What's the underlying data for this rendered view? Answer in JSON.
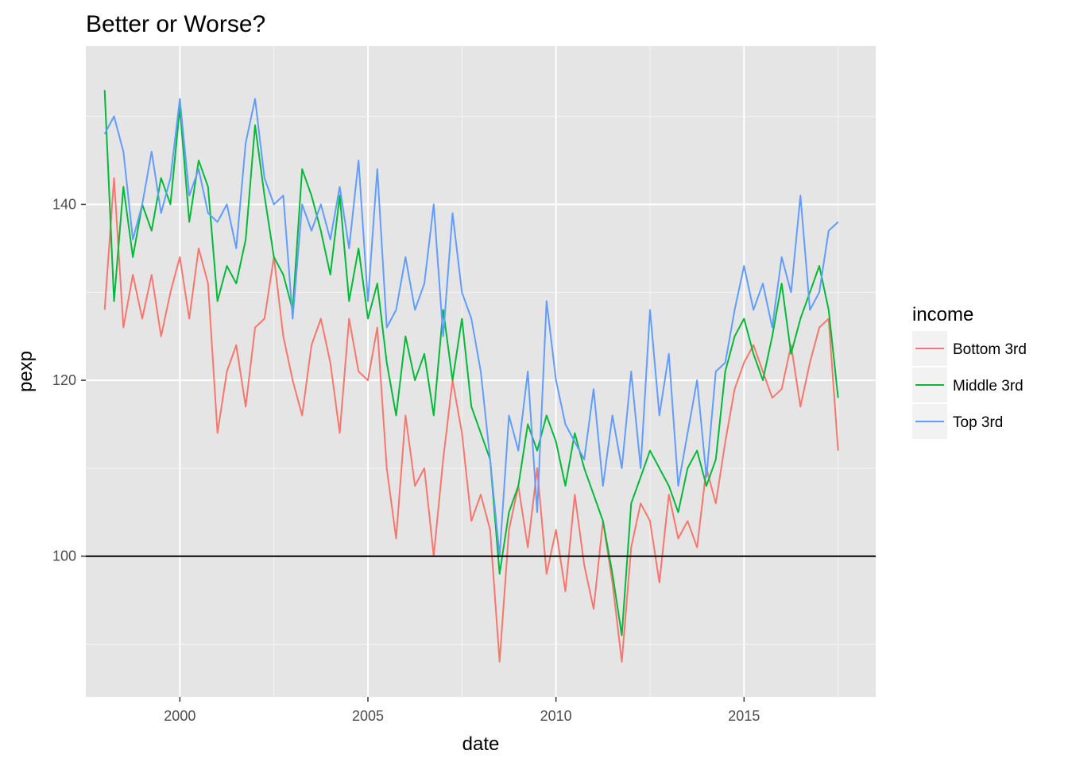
{
  "chart_data": {
    "type": "line",
    "title": "Better or Worse?",
    "xlabel": "date",
    "ylabel": "pexp",
    "xlim": [
      1997.5,
      2018.5
    ],
    "ylim": [
      84,
      158
    ],
    "x_ticks": [
      2000,
      2005,
      2010,
      2015
    ],
    "y_ticks": [
      100,
      120,
      140
    ],
    "reference_line": {
      "y": 100,
      "color": "#000000"
    },
    "panel_background": "#e5e5e5",
    "grid": true,
    "legend": {
      "title": "income",
      "position": "right",
      "entries": [
        "Bottom 3rd",
        "Middle 3rd",
        "Top 3rd"
      ]
    },
    "series": [
      {
        "name": "Bottom 3rd",
        "color": "#f8766d",
        "x": [
          1998.0,
          1998.25,
          1998.5,
          1998.75,
          1999.0,
          1999.25,
          1999.5,
          1999.75,
          2000.0,
          2000.25,
          2000.5,
          2000.75,
          2001.0,
          2001.25,
          2001.5,
          2001.75,
          2002.0,
          2002.25,
          2002.5,
          2002.75,
          2003.0,
          2003.25,
          2003.5,
          2003.75,
          2004.0,
          2004.25,
          2004.5,
          2004.75,
          2005.0,
          2005.25,
          2005.5,
          2005.75,
          2006.0,
          2006.25,
          2006.5,
          2006.75,
          2007.0,
          2007.25,
          2007.5,
          2007.75,
          2008.0,
          2008.25,
          2008.5,
          2008.75,
          2009.0,
          2009.25,
          2009.5,
          2009.75,
          2010.0,
          2010.25,
          2010.5,
          2010.75,
          2011.0,
          2011.25,
          2011.5,
          2011.75,
          2012.0,
          2012.25,
          2012.5,
          2012.75,
          2013.0,
          2013.25,
          2013.5,
          2013.75,
          2014.0,
          2014.25,
          2014.5,
          2014.75,
          2015.0,
          2015.25,
          2015.5,
          2015.75,
          2016.0,
          2016.25,
          2016.5,
          2016.75,
          2017.0,
          2017.25,
          2017.5
        ],
        "values": [
          128,
          143,
          126,
          132,
          127,
          132,
          125,
          130,
          134,
          127,
          135,
          131,
          114,
          121,
          124,
          117,
          126,
          127,
          134,
          125,
          120,
          116,
          124,
          127,
          122,
          114,
          127,
          121,
          120,
          126,
          110,
          102,
          116,
          108,
          110,
          100,
          111,
          120,
          114,
          104,
          107,
          103,
          88,
          103,
          108,
          101,
          110,
          98,
          103,
          96,
          107,
          99,
          94,
          104,
          97,
          88,
          101,
          106,
          104,
          97,
          107,
          102,
          104,
          101,
          110,
          106,
          113,
          119,
          122,
          124,
          121,
          118,
          119,
          124,
          117,
          122,
          126,
          127,
          112
        ]
      },
      {
        "name": "Middle 3rd",
        "color": "#00ba38",
        "x": [
          1998.0,
          1998.25,
          1998.5,
          1998.75,
          1999.0,
          1999.25,
          1999.5,
          1999.75,
          2000.0,
          2000.25,
          2000.5,
          2000.75,
          2001.0,
          2001.25,
          2001.5,
          2001.75,
          2002.0,
          2002.25,
          2002.5,
          2002.75,
          2003.0,
          2003.25,
          2003.5,
          2003.75,
          2004.0,
          2004.25,
          2004.5,
          2004.75,
          2005.0,
          2005.25,
          2005.5,
          2005.75,
          2006.0,
          2006.25,
          2006.5,
          2006.75,
          2007.0,
          2007.25,
          2007.5,
          2007.75,
          2008.0,
          2008.25,
          2008.5,
          2008.75,
          2009.0,
          2009.25,
          2009.5,
          2009.75,
          2010.0,
          2010.25,
          2010.5,
          2010.75,
          2011.0,
          2011.25,
          2011.5,
          2011.75,
          2012.0,
          2012.25,
          2012.5,
          2012.75,
          2013.0,
          2013.25,
          2013.5,
          2013.75,
          2014.0,
          2014.25,
          2014.5,
          2014.75,
          2015.0,
          2015.25,
          2015.5,
          2015.75,
          2016.0,
          2016.25,
          2016.5,
          2016.75,
          2017.0,
          2017.25,
          2017.5
        ],
        "values": [
          153,
          129,
          142,
          134,
          140,
          137,
          143,
          140,
          151,
          138,
          145,
          142,
          129,
          133,
          131,
          136,
          149,
          141,
          134,
          132,
          128,
          144,
          141,
          137,
          132,
          141,
          129,
          135,
          127,
          131,
          122,
          116,
          125,
          120,
          123,
          116,
          128,
          120,
          127,
          117,
          114,
          111,
          98,
          105,
          108,
          115,
          112,
          116,
          113,
          108,
          114,
          110,
          107,
          104,
          98,
          91,
          106,
          109,
          112,
          110,
          108,
          105,
          110,
          112,
          108,
          111,
          121,
          125,
          127,
          123,
          120,
          125,
          131,
          123,
          127,
          130,
          133,
          128,
          118
        ]
      },
      {
        "name": "Top 3rd",
        "color": "#619cff",
        "x": [
          1998.0,
          1998.25,
          1998.5,
          1998.75,
          1999.0,
          1999.25,
          1999.5,
          1999.75,
          2000.0,
          2000.25,
          2000.5,
          2000.75,
          2001.0,
          2001.25,
          2001.5,
          2001.75,
          2002.0,
          2002.25,
          2002.5,
          2002.75,
          2003.0,
          2003.25,
          2003.5,
          2003.75,
          2004.0,
          2004.25,
          2004.5,
          2004.75,
          2005.0,
          2005.25,
          2005.5,
          2005.75,
          2006.0,
          2006.25,
          2006.5,
          2006.75,
          2007.0,
          2007.25,
          2007.5,
          2007.75,
          2008.0,
          2008.25,
          2008.5,
          2008.75,
          2009.0,
          2009.25,
          2009.5,
          2009.75,
          2010.0,
          2010.25,
          2010.5,
          2010.75,
          2011.0,
          2011.25,
          2011.5,
          2011.75,
          2012.0,
          2012.25,
          2012.5,
          2012.75,
          2013.0,
          2013.25,
          2013.5,
          2013.75,
          2014.0,
          2014.25,
          2014.5,
          2014.75,
          2015.0,
          2015.25,
          2015.5,
          2015.75,
          2016.0,
          2016.25,
          2016.5,
          2016.75,
          2017.0,
          2017.25,
          2017.5
        ],
        "values": [
          148,
          150,
          146,
          136,
          140,
          146,
          139,
          143,
          152,
          141,
          144,
          139,
          138,
          140,
          135,
          147,
          152,
          143,
          140,
          141,
          127,
          140,
          137,
          140,
          136,
          142,
          135,
          145,
          129,
          144,
          126,
          128,
          134,
          128,
          131,
          140,
          125,
          139,
          130,
          127,
          121,
          111,
          100,
          116,
          112,
          121,
          105,
          129,
          120,
          115,
          113,
          111,
          119,
          108,
          116,
          110,
          121,
          110,
          128,
          116,
          123,
          108,
          114,
          120,
          109,
          121,
          122,
          128,
          133,
          128,
          131,
          126,
          134,
          130,
          141,
          128,
          130,
          137,
          138
        ]
      }
    ]
  }
}
